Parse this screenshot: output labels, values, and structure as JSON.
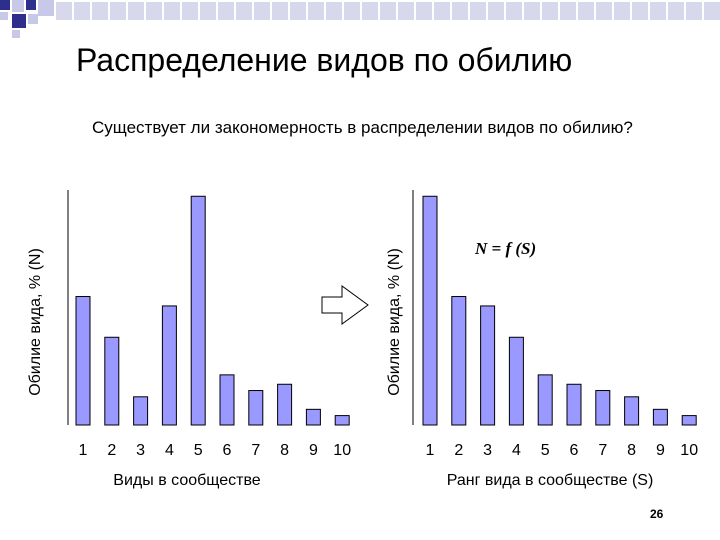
{
  "slide": {
    "title": "Распределение видов по обилию",
    "question": "Существует ли закономерность в распределении видов по обилию?",
    "page_number": "26",
    "colors": {
      "bar_fill": "#9999ff",
      "deco_light": "#c8c8e8",
      "deco_dark": "#2e2e8c",
      "arrow": "#000000"
    }
  },
  "chart_data": [
    {
      "type": "bar",
      "categories": [
        "1",
        "2",
        "3",
        "4",
        "5",
        "6",
        "7",
        "8",
        "9",
        "10"
      ],
      "values": [
        41,
        28,
        9,
        38,
        73,
        16,
        11,
        13,
        5,
        3
      ],
      "xlabel": "Виды в сообществе",
      "ylabel": "Обилие вида, % (N)",
      "ylim": [
        0,
        75
      ],
      "grid": false
    },
    {
      "type": "bar",
      "categories": [
        "1",
        "2",
        "3",
        "4",
        "5",
        "6",
        "7",
        "8",
        "9",
        "10"
      ],
      "values": [
        73,
        41,
        38,
        28,
        16,
        13,
        11,
        9,
        5,
        3
      ],
      "xlabel": "Ранг вида в сообществе (S)",
      "ylabel": "Обилие вида, % (N)",
      "annotation": "N = f (S)",
      "ylim": [
        0,
        75
      ],
      "grid": false
    }
  ]
}
